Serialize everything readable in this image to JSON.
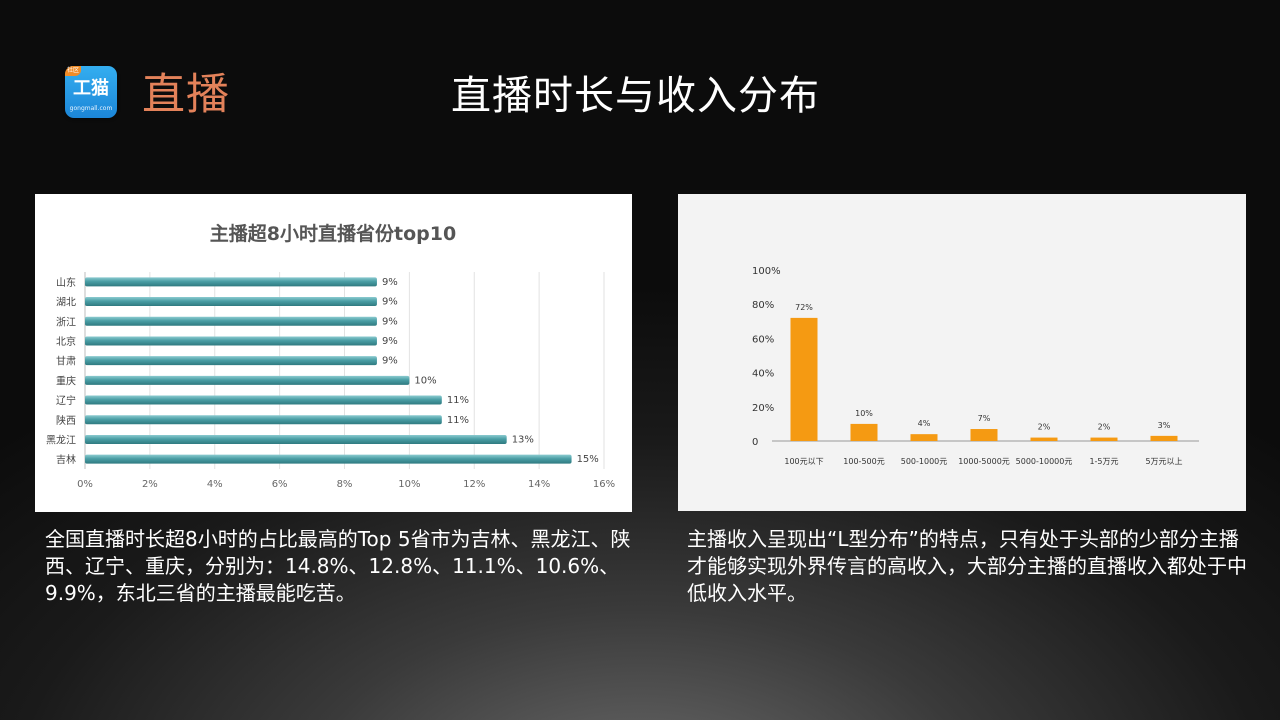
{
  "logo": {
    "tag": "社区",
    "name": "工猫",
    "domain": "gongmall.com"
  },
  "header": {
    "section": "直播",
    "title": "直播时长与收入分布"
  },
  "chart_data": [
    {
      "type": "bar",
      "orientation": "horizontal",
      "title": "主播超8小时直播省份top10",
      "categories": [
        "山东",
        "湖北",
        "浙江",
        "北京",
        "甘肃",
        "重庆",
        "辽宁",
        "陕西",
        "黑龙江",
        "吉林"
      ],
      "values": [
        9,
        9,
        9,
        9,
        9,
        10,
        11,
        11,
        13,
        15
      ],
      "labels": [
        "9%",
        "9%",
        "9%",
        "9%",
        "9%",
        "10%",
        "11%",
        "11%",
        "13%",
        "15%"
      ],
      "xlim": [
        0,
        16
      ],
      "xticks": [
        "0%",
        "2%",
        "4%",
        "6%",
        "8%",
        "10%",
        "12%",
        "14%",
        "16%"
      ],
      "grid": true,
      "color": "#4a9ea5"
    },
    {
      "type": "bar",
      "categories": [
        "100元以下",
        "100-500元",
        "500-1000元",
        "1000-5000元",
        "5000-10000元",
        "1-5万元",
        "5万元以上"
      ],
      "values": [
        72,
        10,
        4,
        7,
        2,
        2,
        3
      ],
      "labels": [
        "72%",
        "10%",
        "4%",
        "7%",
        "2%",
        "2%",
        "3%"
      ],
      "ylim": [
        0,
        100
      ],
      "yticks": [
        "0",
        "20%",
        "40%",
        "60%",
        "80%",
        "100%"
      ],
      "grid": false,
      "color": "#f59a12"
    }
  ],
  "captions": {
    "left": "全国直播时长超8小时的占比最高的Top 5省市为吉林、黑龙江、陕西、辽宁、重庆，分别为：14.8%、12.8%、11.1%、10.6%、9.9%，东北三省的主播最能吃苦。",
    "right": "主播收入呈现出“L型分布”的特点，只有处于头部的少部分主播才能够实现外界传言的高收入，大部分主播的直播收入都处于中低收入水平。"
  }
}
